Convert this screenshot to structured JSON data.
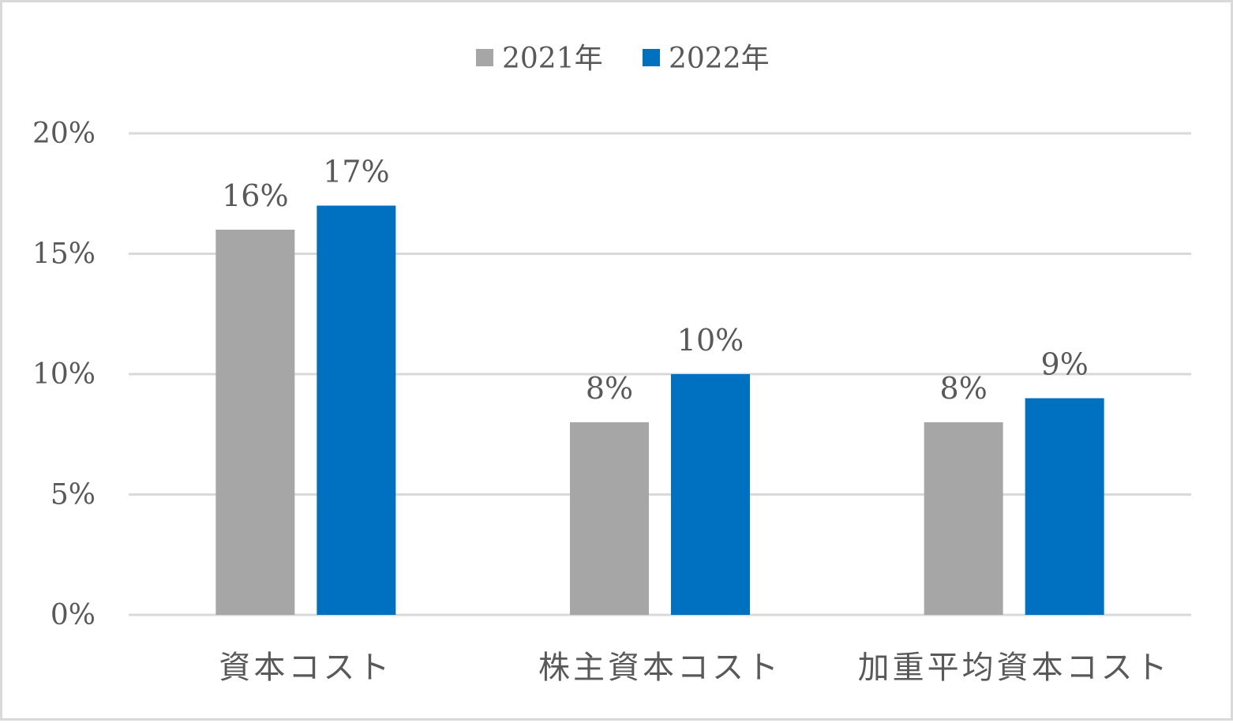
{
  "chart_data": {
    "type": "bar",
    "categories": [
      "資本コスト",
      "株主資本コスト",
      "加重平均資本コスト"
    ],
    "series": [
      {
        "name": "2021年",
        "values": [
          16,
          8,
          8
        ],
        "labels": [
          "16%",
          "8%",
          "8%"
        ],
        "color": "#a6a6a6"
      },
      {
        "name": "2022年",
        "values": [
          17,
          10,
          9
        ],
        "labels": [
          "17%",
          "10%",
          "9%"
        ],
        "color": "#0070c0"
      }
    ],
    "y_ticks": [
      0,
      5,
      10,
      15,
      20
    ],
    "y_tick_labels": [
      "0%",
      "5%",
      "10%",
      "15%",
      "20%"
    ],
    "ylim": [
      0,
      20
    ],
    "grid": true,
    "legend_position": "top-center",
    "gridline_color": "#d9d9d9",
    "text_color": "#595959"
  }
}
